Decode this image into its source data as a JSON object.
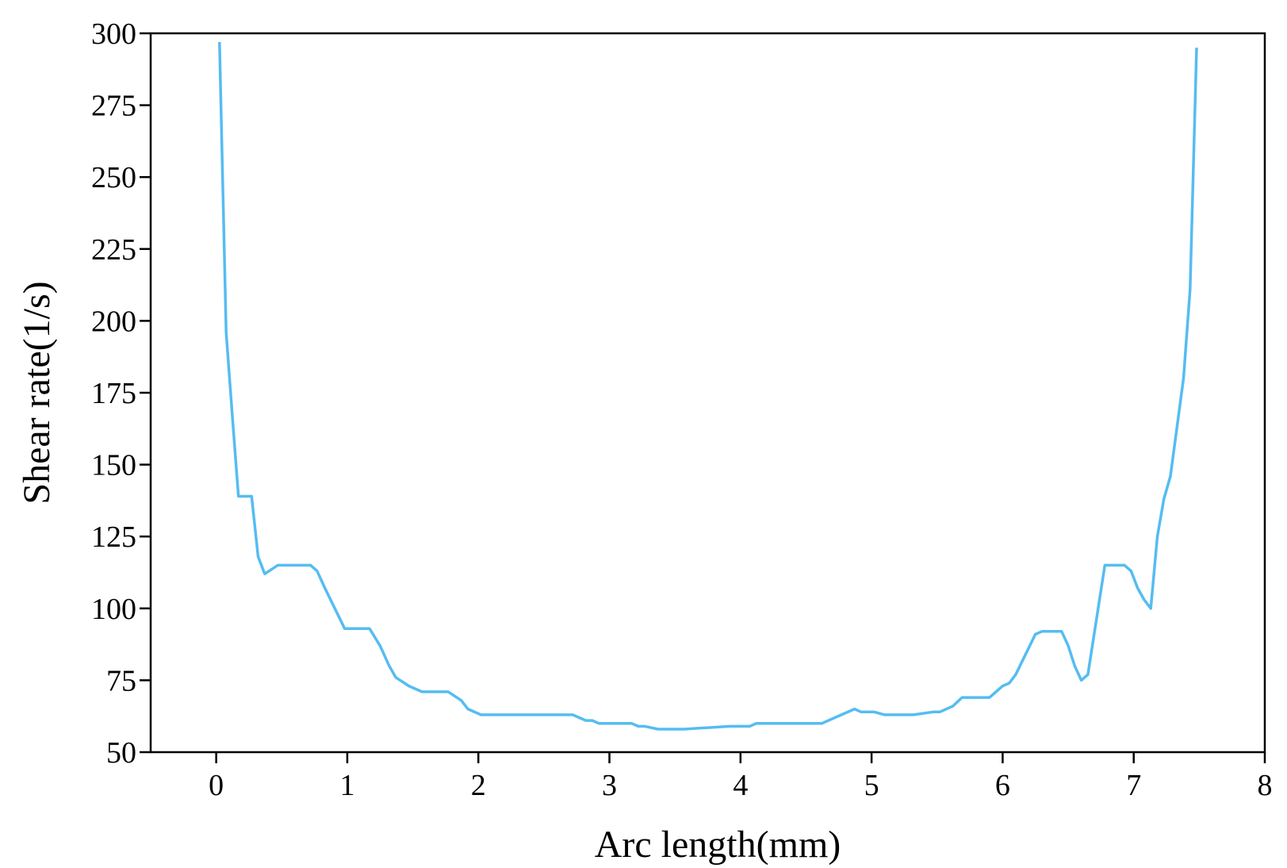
{
  "chart_data": {
    "type": "line",
    "xlabel": "Arc length(mm)",
    "ylabel": "Shear rate(1/s)",
    "xlim": [
      -0.5,
      8
    ],
    "xticks": [
      0,
      1,
      2,
      3,
      4,
      5,
      6,
      7,
      8
    ],
    "ylim": [
      50,
      300
    ],
    "yticks": [
      50,
      75,
      100,
      125,
      150,
      175,
      200,
      225,
      250,
      275,
      300
    ],
    "series": [
      {
        "color": "#55bcf2",
        "x": [
          0.025,
          0.076,
          0.126,
          0.17,
          0.27,
          0.32,
          0.37,
          0.47,
          0.72,
          0.77,
          0.83,
          0.98,
          1.17,
          1.25,
          1.32,
          1.37,
          1.47,
          1.57,
          1.77,
          1.87,
          1.92,
          2.02,
          2.72,
          2.82,
          2.87,
          2.92,
          3.17,
          3.22,
          3.27,
          3.37,
          3.57,
          3.92,
          4.07,
          4.12,
          4.62,
          4.72,
          4.87,
          4.92,
          5.02,
          5.1,
          5.32,
          5.47,
          5.52,
          5.62,
          5.69,
          5.9,
          6.0,
          6.05,
          6.1,
          6.25,
          6.3,
          6.45,
          6.5,
          6.55,
          6.6,
          6.65,
          6.78,
          6.93,
          6.98,
          7.03,
          7.08,
          7.13,
          7.18,
          7.23,
          7.28,
          7.38,
          7.43,
          7.48
        ],
        "values": [
          297,
          196,
          165,
          139,
          139,
          118,
          112,
          115,
          115,
          113,
          107,
          93,
          93,
          87,
          80,
          76,
          73,
          71,
          71,
          68,
          65,
          63,
          63,
          61,
          61,
          60,
          60,
          59,
          59,
          58,
          58,
          59,
          59,
          60,
          60,
          62,
          65,
          64,
          64,
          63,
          63,
          64,
          64,
          66,
          69,
          69,
          73,
          74,
          77,
          91,
          92,
          92,
          87,
          80,
          75,
          77,
          115,
          115,
          113,
          107,
          103,
          100,
          125,
          138,
          146,
          180,
          211,
          295
        ]
      }
    ]
  }
}
